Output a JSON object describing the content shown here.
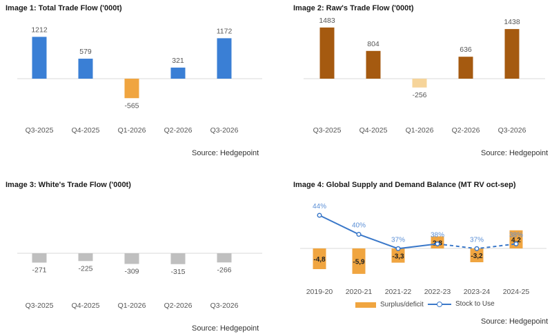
{
  "chart_data": [
    {
      "type": "bar",
      "title": "Image 1: Total Trade Flow ('000t)",
      "categories": [
        "Q3-2025",
        "Q4-2025",
        "Q1-2026",
        "Q2-2026",
        "Q3-2026"
      ],
      "values": [
        1212,
        579,
        -565,
        321,
        1172
      ],
      "colors": [
        "#3a7fd5",
        "#3a7fd5",
        "#f0a540",
        "#3a7fd5",
        "#3a7fd5"
      ],
      "ylim": [
        -2000,
        2000
      ],
      "source": "Source: Hedgepoint"
    },
    {
      "type": "bar",
      "title": "Image 2: Raw's Trade Flow ('000t)",
      "categories": [
        "Q3-2025",
        "Q4-2025",
        "Q1-2026",
        "Q2-2026",
        "Q3-2026"
      ],
      "values": [
        1483,
        804,
        -256,
        636,
        1438
      ],
      "colors": [
        "#a55a10",
        "#a55a10",
        "#f6d49a",
        "#a55a10",
        "#a55a10"
      ],
      "ylim": [
        -2000,
        2000
      ],
      "source": "Source: Hedgepoint"
    },
    {
      "type": "bar",
      "title": "Image 3: White's Trade Flow ('000t)",
      "categories": [
        "Q3-2025",
        "Q4-2025",
        "Q1-2026",
        "Q2-2026",
        "Q3-2026"
      ],
      "values": [
        -271,
        -225,
        -309,
        -315,
        -266
      ],
      "colors": [
        "#bfbfbf",
        "#bfbfbf",
        "#bfbfbf",
        "#bfbfbf",
        "#bfbfbf"
      ],
      "ylim": [
        -2000,
        2000
      ],
      "source": "Source: Hedgepoint"
    },
    {
      "type": "bar",
      "title": "Image 4: Global Supply and Demand Balance (MT RV oct-sep)",
      "categories": [
        "2019-20",
        "2020-21",
        "2021-22",
        "2022-23",
        "2023-24",
        "2024-25"
      ],
      "series": [
        {
          "name": "Surplus/deficit",
          "kind": "bar",
          "values": [
            -4.8,
            -5.9,
            -3.3,
            2.8,
            -3.2,
            4.2
          ],
          "labels": [
            "-4,8",
            "-5,9",
            "-3,3",
            "2,8",
            "-3,2",
            "4,2"
          ],
          "color": "#f0a540"
        },
        {
          "name": "Stock to Use",
          "kind": "line",
          "values": [
            44,
            40,
            37,
            38,
            37,
            38
          ],
          "labels": [
            "44%",
            "40%",
            "37%",
            "38%",
            "37%",
            "38%"
          ],
          "color": "#3a78c9",
          "dashed_from_index": 3
        }
      ],
      "bar_ylim": [
        -8,
        8
      ],
      "line_ylim": [
        20,
        60
      ],
      "source": "Source: Hedgepoint"
    }
  ]
}
